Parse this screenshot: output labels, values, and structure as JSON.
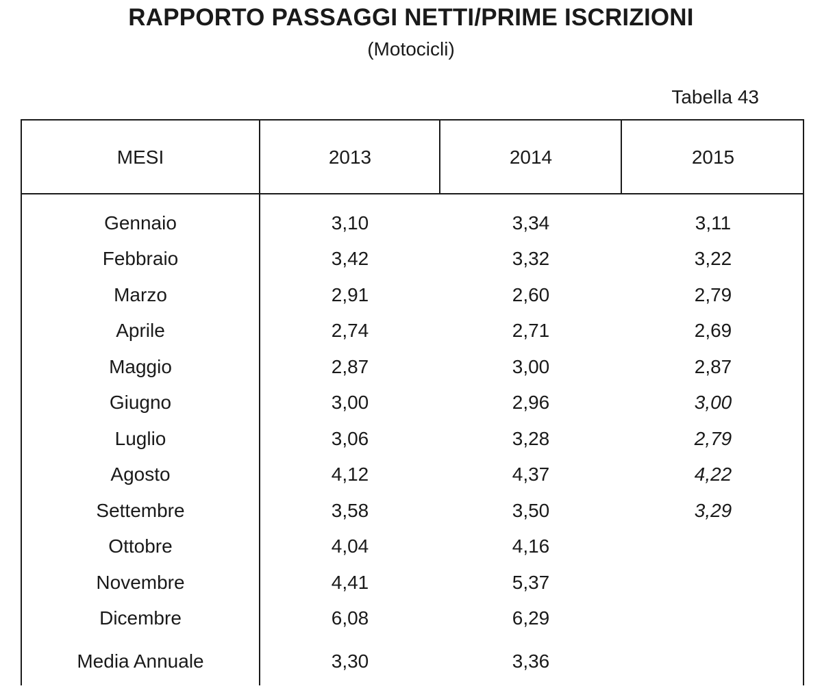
{
  "title": "RAPPORTO PASSAGGI NETTI/PRIME ISCRIZIONI",
  "subtitle": "(Motocicli)",
  "table_number": "Tabella 43",
  "columns": [
    "MESI",
    "2013",
    "2014",
    "2015"
  ],
  "rows": [
    {
      "month": "Gennaio",
      "y2013": "3,10",
      "y2014": "3,34",
      "y2015": "3,11"
    },
    {
      "month": "Febbraio",
      "y2013": "3,42",
      "y2014": "3,32",
      "y2015": "3,22"
    },
    {
      "month": "Marzo",
      "y2013": "2,91",
      "y2014": "2,60",
      "y2015": "2,79"
    },
    {
      "month": "Aprile",
      "y2013": "2,74",
      "y2014": "2,71",
      "y2015": "2,69"
    },
    {
      "month": "Maggio",
      "y2013": "2,87",
      "y2014": "3,00",
      "y2015": "2,87"
    },
    {
      "month": "Giugno",
      "y2013": "3,00",
      "y2014": "2,96",
      "y2015": "3,00"
    },
    {
      "month": "Luglio",
      "y2013": "3,06",
      "y2014": "3,28",
      "y2015": "2,79"
    },
    {
      "month": "Agosto",
      "y2013": "4,12",
      "y2014": "4,37",
      "y2015": "4,22"
    },
    {
      "month": "Settembre",
      "y2013": "3,58",
      "y2014": "3,50",
      "y2015": "3,29"
    },
    {
      "month": "Ottobre",
      "y2013": "4,04",
      "y2014": "4,16",
      "y2015": ""
    },
    {
      "month": "Novembre",
      "y2013": "4,41",
      "y2014": "5,37",
      "y2015": ""
    },
    {
      "month": "Dicembre",
      "y2013": "6,08",
      "y2014": "6,29",
      "y2015": ""
    }
  ],
  "summary": {
    "label": "Media Annuale",
    "y2013": "3,30",
    "y2014": "3,36",
    "y2015": ""
  }
}
